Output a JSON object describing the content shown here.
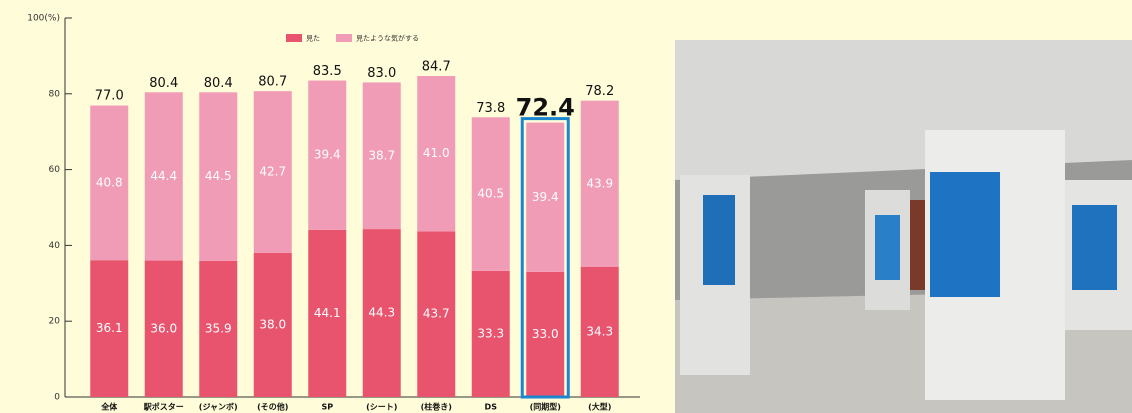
{
  "chart_data": {
    "type": "stacked-bar",
    "categories": [
      "全体",
      "駅ポスター",
      "(ジャンボ)",
      "(その他)",
      "SP",
      "(シート)",
      "(柱巻き)",
      "DS",
      "(同期型)",
      "(大型)"
    ],
    "series": [
      {
        "name": "見た",
        "color": "#e8546e",
        "values": [
          36.1,
          36.0,
          35.9,
          38.0,
          44.1,
          44.3,
          43.7,
          33.3,
          33.0,
          34.3
        ],
        "value_labels": [
          "36.1",
          "36.0",
          "35.9",
          "38.0",
          "44.1",
          "44.3",
          "43.7",
          "33.3",
          "33.0",
          "34.3"
        ]
      },
      {
        "name": "見たような気がする",
        "color": "#f19cb6",
        "values": [
          40.8,
          44.4,
          44.5,
          42.7,
          39.4,
          38.7,
          41.0,
          40.5,
          39.4,
          43.9
        ],
        "value_labels": [
          "40.8",
          "44.4",
          "44.5",
          "42.7",
          "39.4",
          "38.7",
          "41.0",
          "40.5",
          "39.4",
          "43.9"
        ]
      }
    ],
    "totals": [
      77.0,
      80.4,
      80.4,
      80.7,
      83.5,
      83.0,
      84.7,
      73.8,
      72.4,
      78.2
    ],
    "total_labels": [
      "77.0",
      "80.4",
      "80.4",
      "80.7",
      "83.5",
      "83.0",
      "84.7",
      "73.8",
      "72.4",
      "78.2"
    ],
    "highlight": 8,
    "ylim": [
      0,
      100
    ],
    "yticks": [
      0,
      20,
      40,
      60,
      80,
      {
        "value": 100,
        "label": "100(%)"
      }
    ]
  }
}
